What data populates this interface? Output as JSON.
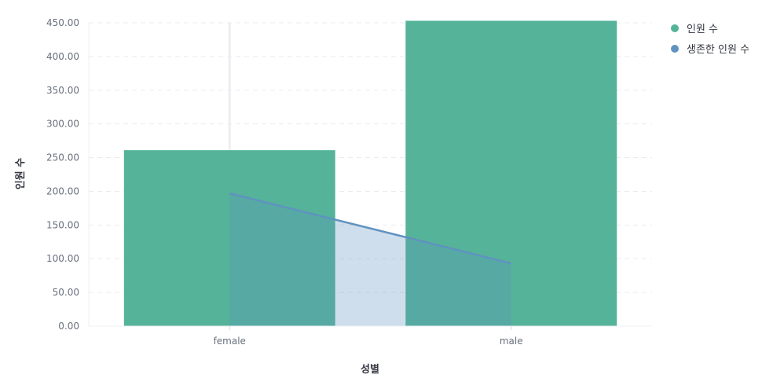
{
  "chart_data": {
    "type": "bar",
    "categories": [
      "female",
      "male"
    ],
    "series": [
      {
        "name": "인원 수",
        "type": "bar",
        "color": "#54b399",
        "values": [
          261,
          453
        ]
      },
      {
        "name": "생존한 인원 수",
        "type": "area",
        "color": "#6092c0",
        "values": [
          197,
          93
        ]
      }
    ],
    "xlabel": "성별",
    "ylabel": "인원 수",
    "ylim": [
      0,
      450
    ],
    "yticks": [
      "0.00",
      "50.00",
      "100.00",
      "150.00",
      "200.00",
      "250.00",
      "300.00",
      "350.00",
      "400.00",
      "450.00"
    ],
    "grid": true,
    "legend_position": "top-right"
  }
}
